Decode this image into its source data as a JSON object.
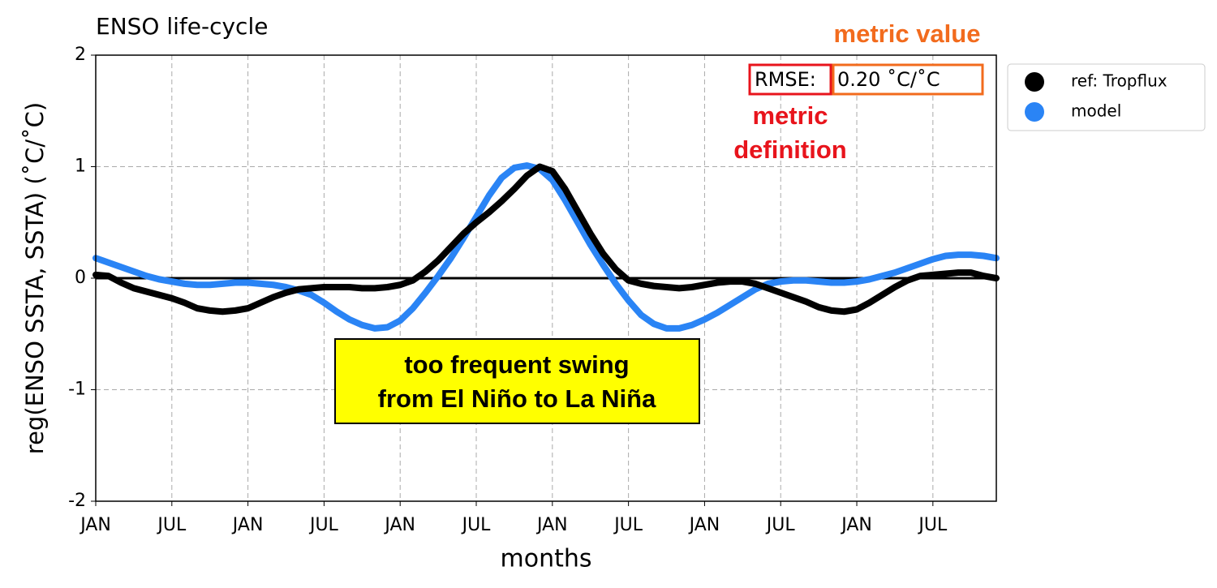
{
  "chart_data": {
    "type": "line",
    "title": "ENSO life-cycle",
    "x_label": "months",
    "y_label": "reg(ENSO SSTA, SSTA) (˚C/˚C)",
    "x": [
      0,
      1,
      2,
      3,
      4,
      5,
      6,
      7,
      8,
      9,
      10,
      11,
      12,
      13,
      14,
      15,
      16,
      17,
      18,
      19,
      20,
      21,
      22,
      23,
      24,
      25,
      26,
      27,
      28,
      29,
      30,
      31,
      32,
      33,
      34,
      35,
      36,
      37,
      38,
      39,
      40,
      41,
      42,
      43,
      44,
      45,
      46,
      47,
      48,
      49,
      50,
      51,
      52,
      53,
      54,
      55,
      56,
      57,
      58,
      59,
      60,
      61,
      62,
      63,
      64,
      65,
      66,
      67,
      68,
      69,
      70,
      71
    ],
    "series": [
      {
        "name": "ref: Tropflux",
        "color": "#000000",
        "values": [
          0.03,
          0.02,
          -0.04,
          -0.09,
          -0.12,
          -0.15,
          -0.18,
          -0.22,
          -0.27,
          -0.29,
          -0.3,
          -0.29,
          -0.27,
          -0.22,
          -0.17,
          -0.13,
          -0.1,
          -0.09,
          -0.08,
          -0.08,
          -0.08,
          -0.09,
          -0.09,
          -0.08,
          -0.06,
          -0.02,
          0.06,
          0.16,
          0.28,
          0.4,
          0.5,
          0.59,
          0.69,
          0.8,
          0.92,
          1.0,
          0.96,
          0.8,
          0.6,
          0.4,
          0.22,
          0.08,
          -0.02,
          -0.05,
          -0.07,
          -0.08,
          -0.09,
          -0.08,
          -0.06,
          -0.04,
          -0.03,
          -0.03,
          -0.05,
          -0.09,
          -0.13,
          -0.17,
          -0.21,
          -0.26,
          -0.29,
          -0.3,
          -0.28,
          -0.22,
          -0.15,
          -0.08,
          -0.02,
          0.02,
          0.03,
          0.04,
          0.05,
          0.05,
          0.02,
          0.0
        ]
      },
      {
        "name": "model",
        "color": "#2a84f5",
        "values": [
          0.18,
          0.14,
          0.1,
          0.06,
          0.02,
          -0.01,
          -0.03,
          -0.05,
          -0.06,
          -0.06,
          -0.05,
          -0.04,
          -0.04,
          -0.05,
          -0.06,
          -0.08,
          -0.11,
          -0.15,
          -0.22,
          -0.3,
          -0.37,
          -0.42,
          -0.45,
          -0.44,
          -0.38,
          -0.27,
          -0.13,
          0.02,
          0.18,
          0.36,
          0.55,
          0.74,
          0.9,
          0.99,
          1.01,
          0.98,
          0.88,
          0.7,
          0.5,
          0.3,
          0.12,
          -0.05,
          -0.2,
          -0.33,
          -0.41,
          -0.45,
          -0.45,
          -0.42,
          -0.37,
          -0.31,
          -0.24,
          -0.17,
          -0.1,
          -0.05,
          -0.03,
          -0.02,
          -0.02,
          -0.03,
          -0.04,
          -0.04,
          -0.03,
          -0.01,
          0.02,
          0.05,
          0.09,
          0.13,
          0.17,
          0.2,
          0.21,
          0.21,
          0.2,
          0.18
        ]
      }
    ],
    "reference_line": 0,
    "xlim": [
      0,
      71
    ],
    "ylim": [
      -2,
      2
    ],
    "xticks": [
      {
        "value": 0,
        "label": "JAN"
      },
      {
        "value": 6,
        "label": "JUL"
      },
      {
        "value": 12,
        "label": "JAN"
      },
      {
        "value": 18,
        "label": "JUL"
      },
      {
        "value": 24,
        "label": "JAN"
      },
      {
        "value": 30,
        "label": "JUL"
      },
      {
        "value": 36,
        "label": "JAN"
      },
      {
        "value": 42,
        "label": "JUL"
      },
      {
        "value": 48,
        "label": "JAN"
      },
      {
        "value": 54,
        "label": "JUL"
      },
      {
        "value": 60,
        "label": "JAN"
      },
      {
        "value": 66,
        "label": "JUL"
      }
    ],
    "yticks": [
      -2,
      -1,
      0,
      1,
      2
    ],
    "grid": true,
    "legend": "outside-upper-right",
    "annotations": {
      "metric_name": "RMSE:",
      "metric_value": "0.20 ˚C/˚C",
      "metric_value_label": "metric value",
      "metric_definition_label": [
        "metric",
        "definition"
      ],
      "callout": [
        "too frequent swing",
        "from El Niño to La Niña"
      ]
    }
  }
}
